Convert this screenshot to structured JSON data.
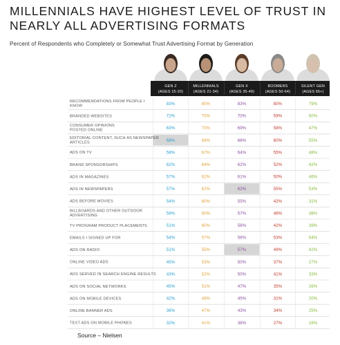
{
  "title": "MILLENNIALS HAVE HIGHEST LEVEL OF TRUST IN NEARLY ALL ADVERTISING FORMATS",
  "subtitle": "Percent of Respondents who Completely or Somewhat Trust Advertising Format by Generation",
  "source": "Source – Nielsen",
  "chart_data": {
    "type": "table",
    "title": "MILLENNIALS HAVE HIGHEST LEVEL OF TRUST IN NEARLY ALL ADVERTISING FORMATS",
    "subtitle": "Percent of Respondents who Completely or Somewhat Trust Advertising Format by Generation",
    "columns": [
      {
        "name": "GEN Z",
        "ages": "(AGES 15-20)",
        "color": "#2a9fd0"
      },
      {
        "name": "MILLENNIALS",
        "ages": "(AGES 21-34)",
        "color": "#e0a23a"
      },
      {
        "name": "GEN X",
        "ages": "(AGES 35-49)",
        "color": "#8a4e9e"
      },
      {
        "name": "BOOMERS",
        "ages": "(AGES 50-64)",
        "color": "#c0392b"
      },
      {
        "name": "SILENT GEN",
        "ages": "(AGES 65+)",
        "color": "#86b83c"
      }
    ],
    "rows": [
      {
        "label": [
          "RECOMMENDATIONS FROM PEOPLE I",
          "KNOW"
        ],
        "values": [
          "83%",
          "85%",
          "83%",
          "80%",
          "79%"
        ],
        "highlight": -1
      },
      {
        "label": [
          "BRANDED WEBSITES"
        ],
        "values": [
          "72%",
          "75%",
          "70%",
          "59%",
          "50%"
        ],
        "highlight": -1
      },
      {
        "label": [
          "CONSUMER OPINIONS",
          "POSTED ONLINE"
        ],
        "values": [
          "63%",
          "70%",
          "69%",
          "58%",
          "47%"
        ],
        "highlight": -1
      },
      {
        "label": [
          "EDITORIAL CONTENT, SUCH AS NEWSPAPER",
          "ARTICLES"
        ],
        "values": [
          "68%",
          "68%",
          "66%",
          "60%",
          "55%"
        ],
        "highlight": 0
      },
      {
        "label": [
          "ADS ON TV"
        ],
        "values": [
          "58%",
          "67%",
          "64%",
          "55%",
          "48%"
        ],
        "highlight": -1
      },
      {
        "label": [
          "BRAND SPONSORSHIPS"
        ],
        "values": [
          "62%",
          "64%",
          "62%",
          "52%",
          "42%"
        ],
        "highlight": -1
      },
      {
        "label": [
          "ADS IN MAGAZINES"
        ],
        "values": [
          "57%",
          "62%",
          "61%",
          "50%",
          "46%"
        ],
        "highlight": -1
      },
      {
        "label": [
          "ADS IN NEWSPAPERS"
        ],
        "values": [
          "57%",
          "62%",
          "62%",
          "55%",
          "53%"
        ],
        "highlight": 2
      },
      {
        "label": [
          "ADS BEFORE MOVIES"
        ],
        "values": [
          "54%",
          "60%",
          "55%",
          "42%",
          "31%"
        ],
        "highlight": -1
      },
      {
        "label": [
          "BILLBOARDS AND OTHER OUTDOOR",
          "ADVERTISING"
        ],
        "values": [
          "59%",
          "60%",
          "57%",
          "46%",
          "38%"
        ],
        "highlight": -1
      },
      {
        "label": [
          "TV PROGRAM PRODUCT PLACEMENTS"
        ],
        "values": [
          "51%",
          "60%",
          "56%",
          "42%",
          "39%"
        ],
        "highlight": -1
      },
      {
        "label": [
          "EMAILS I SIGNED UP FOR"
        ],
        "values": [
          "54%",
          "57%",
          "56%",
          "53%",
          "54%"
        ],
        "highlight": -1
      },
      {
        "label": [
          "ADS ON RADIO"
        ],
        "values": [
          "51%",
          "55%",
          "57%",
          "49%",
          "42%"
        ],
        "highlight": 2
      },
      {
        "label": [
          "ONLINE VIDEO ADS"
        ],
        "values": [
          "45%",
          "53%",
          "50%",
          "37%",
          "27%"
        ],
        "highlight": -1
      },
      {
        "label": [
          "ADS SERVED IN SEARCH ENGINE RESULTS"
        ],
        "values": [
          "43%",
          "52%",
          "50%",
          "41%",
          "33%"
        ],
        "highlight": -1
      },
      {
        "label": [
          "ADS ON SOCIAL NETWORKS"
        ],
        "values": [
          "45%",
          "51%",
          "47%",
          "35%",
          "26%"
        ],
        "highlight": -1
      },
      {
        "label": [
          "ADS ON MOBILE DEVICES"
        ],
        "values": [
          "42%",
          "48%",
          "45%",
          "31%",
          "20%"
        ],
        "highlight": -1
      },
      {
        "label": [
          "ONLINE BANNER ADS"
        ],
        "values": [
          "36%",
          "47%",
          "43%",
          "34%",
          "25%"
        ],
        "highlight": -1
      },
      {
        "label": [
          "TEXT ADS ON MOBILE PHONES"
        ],
        "values": [
          "32%",
          "41%",
          "38%",
          "27%",
          "18%"
        ],
        "highlight": -1
      }
    ],
    "header_background": "#1b1b1b",
    "row_highlight_color": "#d6d6d6",
    "photo_icons": [
      "person-photo-gen-z",
      "person-photo-millennials",
      "person-photo-gen-x",
      "person-photo-boomers",
      "person-photo-silent-gen"
    ]
  }
}
